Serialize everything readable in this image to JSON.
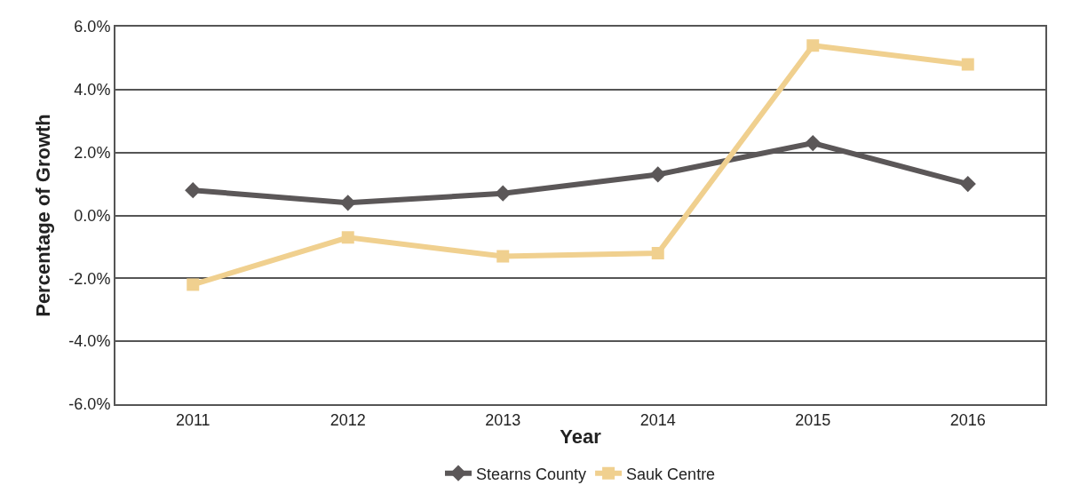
{
  "chart_data": {
    "type": "line",
    "xlabel": "Year",
    "ylabel": "Percentage of Growth",
    "categories": [
      "2011",
      "2012",
      "2013",
      "2014",
      "2015",
      "2016"
    ],
    "series": [
      {
        "name": "Stearns County",
        "color": "#5b5758",
        "marker": "diamond",
        "values": [
          0.8,
          0.4,
          0.7,
          1.3,
          2.3,
          1.0
        ]
      },
      {
        "name": "Sauk Centre",
        "color": "#f0d08f",
        "marker": "square",
        "values": [
          -2.2,
          -0.7,
          -1.3,
          -1.2,
          5.4,
          4.8
        ]
      }
    ],
    "ylim": [
      -6,
      6
    ],
    "yticks": [
      {
        "value": -6,
        "label": "-6.0%"
      },
      {
        "value": -4,
        "label": "-4.0%"
      },
      {
        "value": -2,
        "label": "-2.0%"
      },
      {
        "value": 0,
        "label": "0.0%"
      },
      {
        "value": 2,
        "label": "2.0%"
      },
      {
        "value": 4,
        "label": "4.0%"
      },
      {
        "value": 6,
        "label": "6.0%"
      }
    ],
    "grid": "y",
    "legend": "bottom",
    "line_style": "solid"
  }
}
